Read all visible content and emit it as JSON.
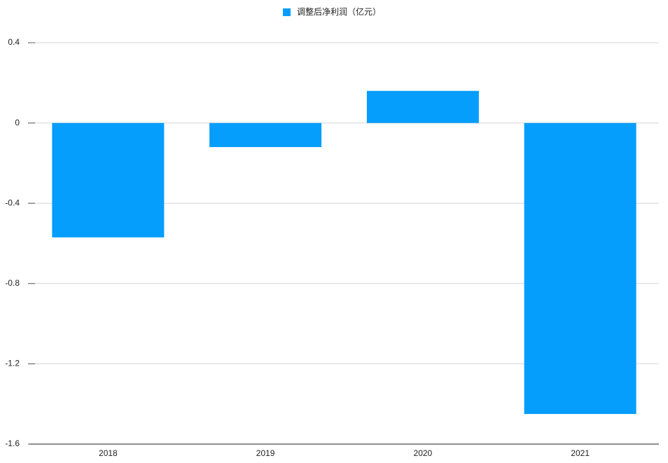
{
  "chart_data": {
    "type": "bar",
    "legend": "调整后净利润（亿元）",
    "categories": [
      "2018",
      "2019",
      "2020",
      "2021"
    ],
    "series": [
      {
        "name": "调整后净利润（亿元）",
        "color": "#069efc",
        "values": [
          -0.57,
          -0.12,
          0.16,
          -1.45
        ]
      }
    ],
    "ylim": [
      -1.6,
      0.4
    ],
    "yticks": [
      0.4,
      0,
      -0.4,
      -0.8,
      -1.2,
      -1.6
    ],
    "grid": true,
    "legend_position": "top"
  }
}
